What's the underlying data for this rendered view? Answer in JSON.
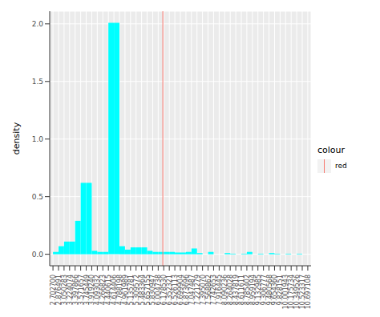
{
  "chart_data": {
    "type": "histogram",
    "y_label": "density",
    "bins": [
      2.7027,
      2.876491,
      3.050283,
      3.224074,
      3.397866,
      3.571657,
      3.745449,
      3.91924,
      4.093032,
      4.266823,
      4.440615,
      4.614406,
      4.788198,
      4.961989,
      5.135781,
      5.309572,
      5.483364,
      5.657155,
      5.830947,
      6.004738,
      6.17853,
      6.352321,
      6.526113,
      6.699904,
      6.873696,
      7.047487,
      7.221279,
      7.39507,
      7.568862,
      7.742653,
      7.916445,
      8.090236,
      8.264028,
      8.437819,
      8.611611,
      8.785402,
      8.959194,
      9.132985,
      9.306777,
      9.480568,
      9.65436,
      9.828151,
      10.001943,
      10.175734,
      10.349526,
      10.523317,
      10.697108
    ],
    "values": [
      0.02,
      0.07,
      0.11,
      0.11,
      0.29,
      0.62,
      0.62,
      0.03,
      0.02,
      0.02,
      2.01,
      2.01,
      0.07,
      0.04,
      0.06,
      0.06,
      0.06,
      0.03,
      0.02,
      0.02,
      0.02,
      0.02,
      0.015,
      0.015,
      0.02,
      0.05,
      0.01,
      0,
      0.02,
      0,
      0,
      0.01,
      0.005,
      0,
      0.005,
      0.02,
      0,
      0.005,
      0,
      0.01,
      0.005,
      0,
      0.005,
      0,
      0.005,
      0
    ],
    "color": "#00ffff",
    "xlim": [
      2.6,
      10.8
    ],
    "xticks": [
      {
        "value": 2.7027,
        "label": "2.702700"
      },
      2.876491,
      3.050283,
      3.224074,
      3.397866,
      3.571657,
      3.745449,
      {
        "value": 3.91924,
        "label": "3.919240"
      },
      4.093032,
      4.266823,
      4.440615,
      4.614406,
      4.788198,
      4.961989,
      5.135781,
      5.309572,
      5.483364,
      5.657155,
      5.830947,
      6.004738,
      {
        "value": 6.17853,
        "label": "6.178530"
      },
      6.352321,
      6.526113,
      6.699904,
      6.873696,
      7.047487,
      7.221279,
      {
        "value": 7.39507,
        "label": "7.395070"
      },
      7.568862,
      7.742653,
      7.916445,
      8.090236,
      8.264028,
      8.437819,
      8.611611,
      8.785402,
      8.959194,
      9.132985,
      9.306777,
      9.480568,
      {
        "value": 9.65436,
        "label": "9.654360"
      },
      9.828151,
      10.001943,
      10.175734,
      10.349526,
      10.523317,
      10.697108
    ],
    "ylim": [
      -0.1,
      2.11
    ],
    "yticks": [
      {
        "value": 0,
        "label": "0.0"
      },
      0.5,
      {
        "value": 1,
        "label": "1.0"
      },
      1.5,
      {
        "value": 2,
        "label": "2.0"
      }
    ],
    "grid": true,
    "vline": {
      "x": 6.15,
      "name": "red",
      "color": "#f8766d"
    },
    "legend": "right",
    "legend_title": "colour"
  }
}
